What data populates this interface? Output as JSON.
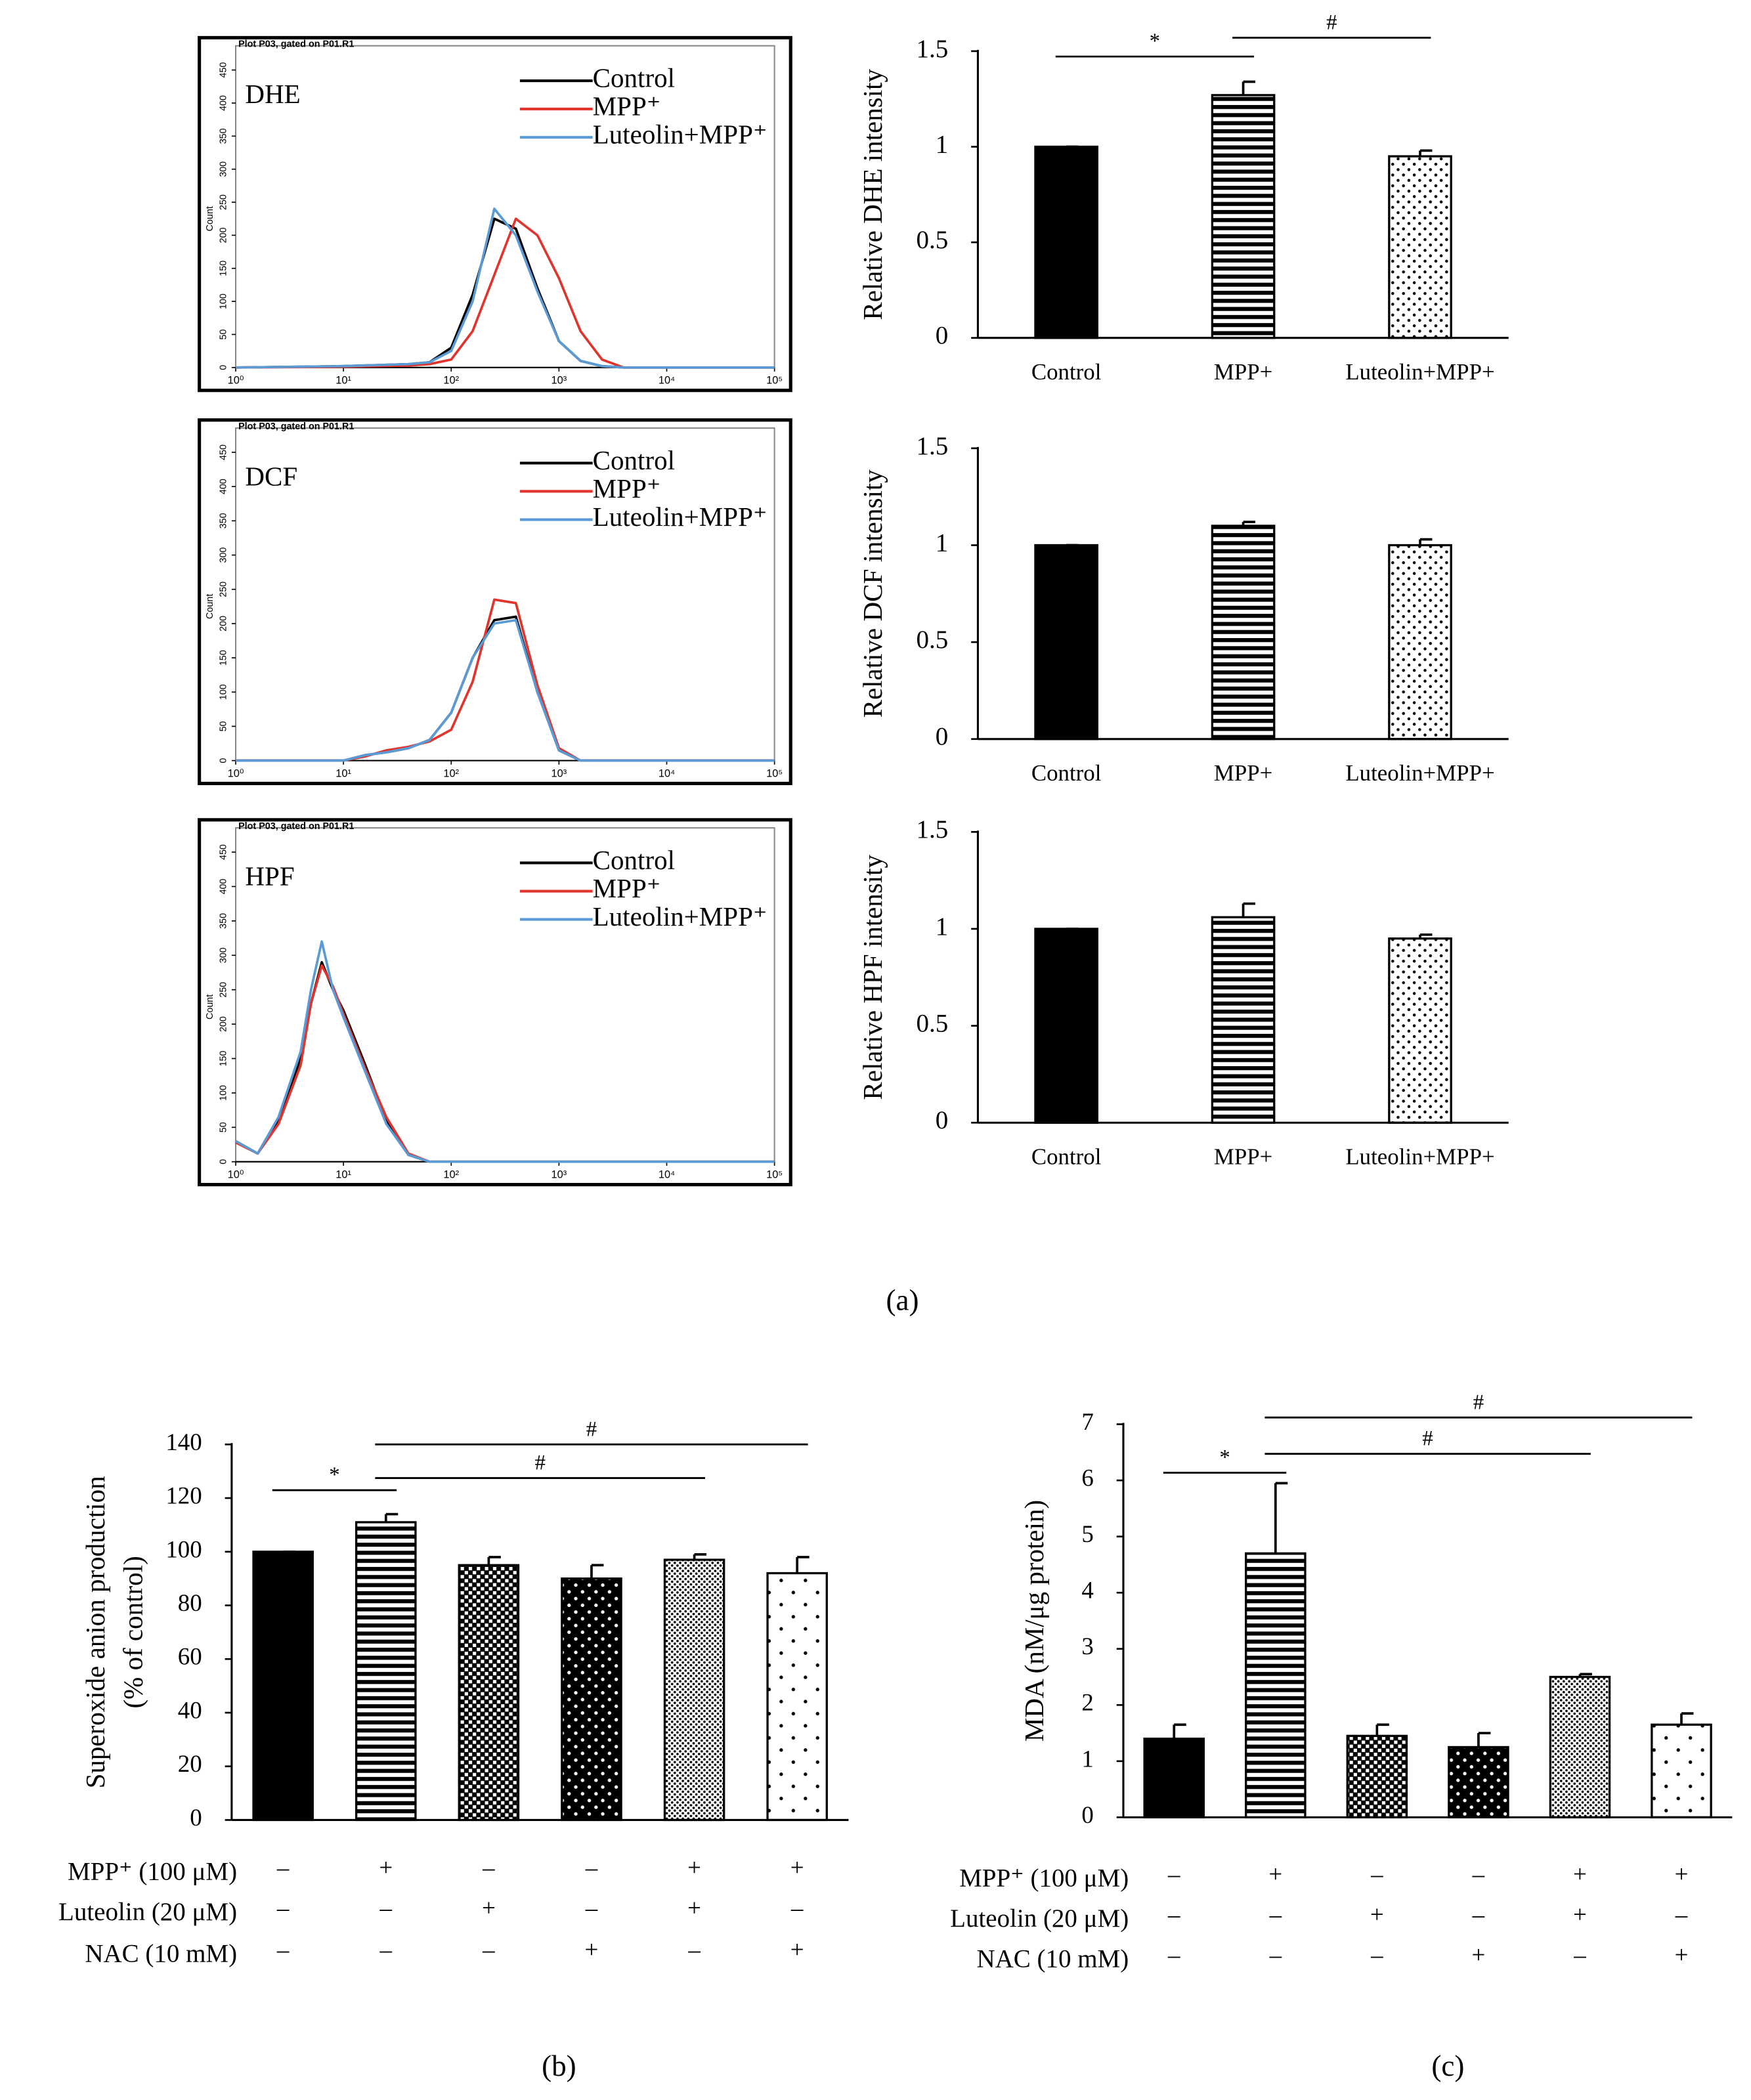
{
  "panels": [
    "(a)",
    "(b)",
    "(c)"
  ],
  "chart_data": [
    {
      "type": "line",
      "title": "Plot P03, gated on P01.R1",
      "label": "DHE",
      "ylabel": "Count",
      "xscale": "log",
      "xlim": [
        1,
        100000
      ],
      "ylim": [
        0,
        450
      ],
      "xticks": [
        {
          "value": 1,
          "label": "10⁰"
        },
        {
          "value": 10,
          "label": "10¹"
        },
        {
          "value": 100,
          "label": "10²"
        },
        {
          "value": 1000,
          "label": "10³"
        },
        {
          "value": 10000,
          "label": "10⁴"
        },
        {
          "value": 100000,
          "label": "10⁵"
        }
      ],
      "yticks": [
        0,
        50,
        100,
        150,
        200,
        250,
        300,
        350,
        400,
        450
      ],
      "x": [
        1,
        10,
        40,
        63,
        100,
        158,
        251,
        398,
        631,
        1000,
        1585,
        2512,
        3981,
        100000
      ],
      "series": [
        {
          "name": "Control",
          "color": "#000000",
          "values": [
            0,
            2,
            5,
            8,
            30,
            110,
            225,
            210,
            120,
            40,
            10,
            2,
            0,
            0
          ]
        },
        {
          "name": "MPP⁺",
          "color": "#e0342c",
          "values": [
            0,
            1,
            3,
            5,
            12,
            55,
            140,
            225,
            200,
            135,
            55,
            12,
            0,
            0
          ]
        },
        {
          "name": "Luteolin+MPP⁺",
          "color": "#5b9bd5",
          "values": [
            0,
            2,
            5,
            8,
            25,
            100,
            240,
            200,
            115,
            40,
            10,
            2,
            0,
            0
          ]
        }
      ]
    },
    {
      "type": "line",
      "title": "Plot P03, gated on P01.R1",
      "label": "DCF",
      "ylabel": "Count",
      "xscale": "log",
      "xlim": [
        1,
        100000
      ],
      "ylim": [
        0,
        450
      ],
      "xticks": [
        {
          "value": 1,
          "label": "10⁰"
        },
        {
          "value": 10,
          "label": "10¹"
        },
        {
          "value": 100,
          "label": "10²"
        },
        {
          "value": 1000,
          "label": "10³"
        },
        {
          "value": 10000,
          "label": "10⁴"
        },
        {
          "value": 100000,
          "label": "10⁵"
        }
      ],
      "yticks": [
        0,
        50,
        100,
        150,
        200,
        250,
        300,
        350,
        400,
        450
      ],
      "x": [
        1,
        10,
        16,
        25,
        40,
        63,
        100,
        158,
        251,
        398,
        631,
        1000,
        1585,
        100000
      ],
      "series": [
        {
          "name": "Control",
          "color": "#000000",
          "values": [
            0,
            0,
            8,
            12,
            18,
            30,
            70,
            150,
            205,
            210,
            100,
            15,
            0,
            0
          ]
        },
        {
          "name": "MPP⁺",
          "color": "#e0342c",
          "values": [
            0,
            0,
            6,
            15,
            20,
            28,
            45,
            115,
            235,
            230,
            110,
            18,
            0,
            0
          ]
        },
        {
          "name": "Luteolin+MPP⁺",
          "color": "#5b9bd5",
          "values": [
            0,
            0,
            8,
            12,
            18,
            30,
            70,
            150,
            200,
            205,
            100,
            15,
            0,
            0
          ]
        }
      ]
    },
    {
      "type": "line",
      "title": "Plot P03, gated on P01.R1",
      "label": "HPF",
      "ylabel": "Count",
      "xscale": "log",
      "xlim": [
        1,
        100000
      ],
      "ylim": [
        0,
        450
      ],
      "xticks": [
        {
          "value": 1,
          "label": "10⁰"
        },
        {
          "value": 10,
          "label": "10¹"
        },
        {
          "value": 100,
          "label": "10²"
        },
        {
          "value": 1000,
          "label": "10³"
        },
        {
          "value": 10000,
          "label": "10⁴"
        },
        {
          "value": 100000,
          "label": "10⁵"
        }
      ],
      "yticks": [
        0,
        50,
        100,
        150,
        200,
        250,
        300,
        350,
        400,
        450
      ],
      "x": [
        1,
        1.6,
        2.5,
        4,
        5,
        6.3,
        8,
        10,
        16,
        25,
        40,
        63,
        100000
      ],
      "series": [
        {
          "name": "Control",
          "color": "#000000",
          "values": [
            30,
            12,
            60,
            150,
            230,
            290,
            250,
            220,
            140,
            60,
            10,
            0,
            0
          ]
        },
        {
          "name": "MPP⁺",
          "color": "#e0342c",
          "values": [
            28,
            12,
            55,
            140,
            230,
            285,
            255,
            215,
            135,
            65,
            12,
            0,
            0
          ]
        },
        {
          "name": "Luteolin+MPP⁺",
          "color": "#5b9bd5",
          "values": [
            30,
            12,
            65,
            160,
            250,
            320,
            250,
            210,
            130,
            55,
            10,
            0,
            0
          ]
        }
      ]
    },
    {
      "type": "bar",
      "ylabel": [
        "Relative DHE intensity"
      ],
      "categories": [
        "Control",
        "MPP+",
        "Luteolin+MPP+"
      ],
      "values": [
        1,
        1.27,
        0.95
      ],
      "errors": [
        0,
        0.07,
        0.03
      ],
      "patterns": [
        "solid",
        "horizontal",
        "dots"
      ],
      "ylim": [
        0,
        1.5
      ],
      "yticks": [
        0,
        0.5,
        1,
        1.5
      ],
      "annotations": [
        "*",
        "#"
      ]
    },
    {
      "type": "bar",
      "ylabel": [
        "Relative DCF intensity"
      ],
      "categories": [
        "Control",
        "MPP+",
        "Luteolin+MPP+"
      ],
      "values": [
        1,
        1.1,
        1.0
      ],
      "errors": [
        0,
        0.02,
        0.03
      ],
      "patterns": [
        "solid",
        "horizontal",
        "dots"
      ],
      "ylim": [
        0,
        1.5
      ],
      "yticks": [
        0,
        0.5,
        1,
        1.5
      ]
    },
    {
      "type": "bar",
      "ylabel": [
        "Relative HPF intensity"
      ],
      "categories": [
        "Control",
        "MPP+",
        "Luteolin+MPP+"
      ],
      "values": [
        1,
        1.06,
        0.95
      ],
      "errors": [
        0,
        0.07,
        0.02
      ],
      "patterns": [
        "solid",
        "horizontal",
        "dots"
      ],
      "ylim": [
        0,
        1.5
      ],
      "yticks": [
        0,
        0.5,
        1,
        1.5
      ]
    },
    {
      "type": "bar",
      "ylabel": [
        "Superoxide anion production",
        "(% of control)"
      ],
      "values": [
        100,
        111,
        95,
        90,
        97,
        92
      ],
      "errors": [
        0,
        3,
        3,
        5,
        2,
        6
      ],
      "patterns": [
        "solid",
        "horizontal",
        "checker",
        "dots-large",
        "dots-dense",
        "dots-sparse"
      ],
      "ylim": [
        0,
        140
      ],
      "yticks": [
        0,
        20,
        40,
        60,
        80,
        100,
        120,
        140
      ],
      "annotations": [
        "*",
        "#",
        "#"
      ],
      "treatments": [
        {
          "label": "MPP⁺ (100 μM)",
          "signs": [
            "–",
            "+",
            "–",
            "–",
            "+",
            "+"
          ]
        },
        {
          "label": "Luteolin (20 μM)",
          "signs": [
            "–",
            "–",
            "+",
            "–",
            "+",
            "–"
          ]
        },
        {
          "label": "NAC (10 mM)",
          "signs": [
            "–",
            "–",
            "–",
            "+",
            "–",
            "+"
          ]
        }
      ]
    },
    {
      "type": "bar",
      "ylabel": [
        "MDA (nM/μg protein)"
      ],
      "values": [
        1.4,
        4.7,
        1.45,
        1.25,
        2.5,
        1.65
      ],
      "errors": [
        0.25,
        1.25,
        0.2,
        0.25,
        0.05,
        0.2
      ],
      "patterns": [
        "solid",
        "horizontal",
        "checker",
        "dots-large",
        "dots-dense",
        "dots-sparse"
      ],
      "ylim": [
        0,
        7
      ],
      "yticks": [
        0,
        1,
        2,
        3,
        4,
        5,
        6,
        7
      ],
      "annotations": [
        "*",
        "#",
        "#"
      ],
      "treatments": [
        {
          "label": "MPP⁺ (100 μM)",
          "signs": [
            "–",
            "+",
            "–",
            "–",
            "+",
            "+"
          ]
        },
        {
          "label": "Luteolin (20 μM)",
          "signs": [
            "–",
            "–",
            "+",
            "–",
            "+",
            "–"
          ]
        },
        {
          "label": "NAC (10 mM)",
          "signs": [
            "–",
            "–",
            "–",
            "+",
            "–",
            "+"
          ]
        }
      ]
    }
  ]
}
